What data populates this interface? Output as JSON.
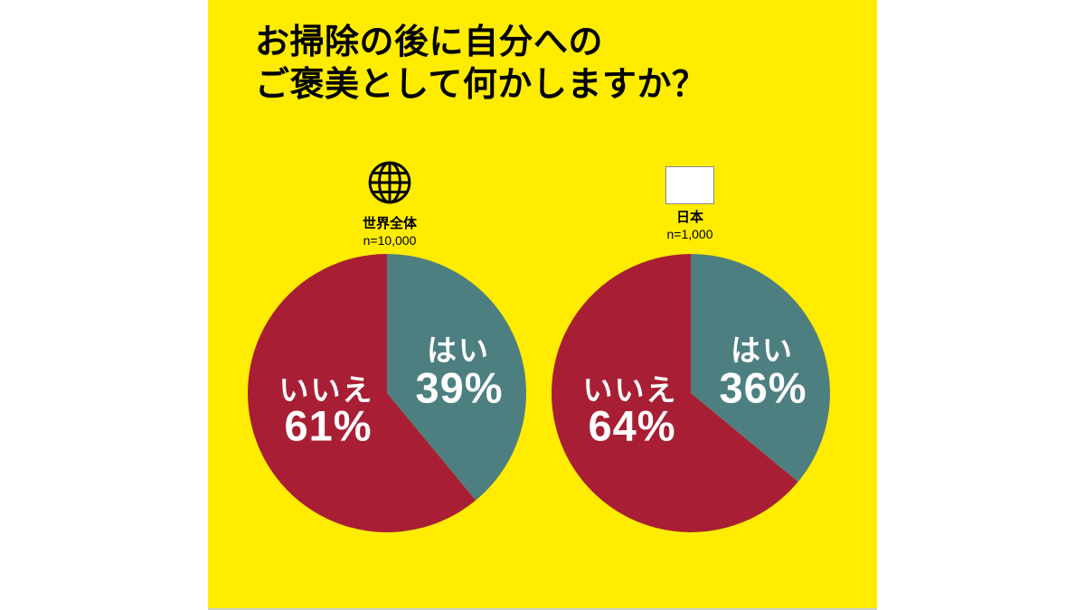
{
  "title": {
    "line1": "お掃除の後に自分への",
    "line2": "ご褒美として何かしますか？"
  },
  "colors": {
    "panel_yellow": "#FFEC00",
    "pie_yes_teal": "#4D7F80",
    "pie_no_red": "#A81F35",
    "flag_red": "#E60012",
    "title_black": "#000000",
    "slice_label_white": "#FFFFFF"
  },
  "chart_data": [
    {
      "type": "pie",
      "icon": "globe-icon",
      "title": "世界全体",
      "subtitle": "n=10,000",
      "labels": [
        "はい",
        "いいえ"
      ],
      "values": [
        39,
        61
      ],
      "value_labels": [
        "39%",
        "61%"
      ],
      "colors": [
        "#4D7F80",
        "#A81F35"
      ],
      "start_angle_deg": 0,
      "direction": "clockwise",
      "legend_position": "inside"
    },
    {
      "type": "pie",
      "icon": "japan-flag-icon",
      "title": "日本",
      "subtitle": "n=1,000",
      "labels": [
        "はい",
        "いいえ"
      ],
      "values": [
        36,
        64
      ],
      "value_labels": [
        "36%",
        "64%"
      ],
      "colors": [
        "#4D7F80",
        "#A81F35"
      ],
      "start_angle_deg": 0,
      "direction": "clockwise",
      "legend_position": "inside"
    }
  ]
}
